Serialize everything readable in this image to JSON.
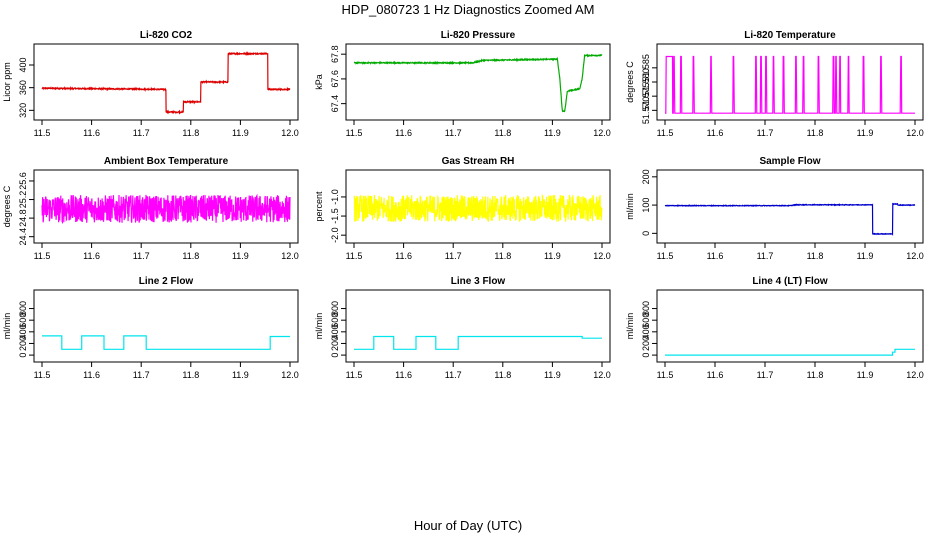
{
  "title": "HDP_080723  1 Hz Diagnostics Zoomed AM",
  "xlabel": "Hour of Day (UTC)",
  "chart_data": [
    {
      "type": "line",
      "title": "Li-820 CO2",
      "ylabel": "Licor ppm",
      "color": "#dd0000",
      "xlim": [
        11.5,
        12.0
      ],
      "ylim": [
        310,
        430
      ],
      "xticks": [
        "11.5",
        "11.6",
        "11.7",
        "11.8",
        "11.9",
        "12.0"
      ],
      "yticks": [
        "320",
        "360",
        "400"
      ],
      "noise": 1.0,
      "x": [
        11.5,
        11.75,
        11.75,
        11.785,
        11.785,
        11.82,
        11.82,
        11.875,
        11.875,
        11.955,
        11.955,
        12.0
      ],
      "y": [
        359,
        357,
        317,
        317,
        335,
        335,
        370,
        370,
        420,
        420,
        357,
        357
      ]
    },
    {
      "type": "line",
      "title": "Li-820 Pressure",
      "ylabel": "kPa",
      "color": "#00aa00",
      "xlim": [
        11.5,
        12.0
      ],
      "ylim": [
        67.3,
        67.85
      ],
      "xticks": [
        "11.5",
        "11.6",
        "11.7",
        "11.8",
        "11.9",
        "12.0"
      ],
      "yticks": [
        "67.4",
        "67.6",
        "67.8"
      ],
      "noise": 0.004,
      "x": [
        11.5,
        11.74,
        11.76,
        11.91,
        11.915,
        11.92,
        11.925,
        11.93,
        11.955,
        11.96,
        11.965,
        11.97,
        12.0
      ],
      "y": [
        67.73,
        67.73,
        67.75,
        67.76,
        67.6,
        67.34,
        67.34,
        67.5,
        67.52,
        67.6,
        67.79,
        67.79,
        67.79
      ]
    },
    {
      "type": "line",
      "title": "Li-820 Temperature",
      "ylabel": "degrees C",
      "color": "#ff00ff",
      "xlim": [
        11.5,
        12.0
      ],
      "ylim": [
        51.568,
        51.592
      ],
      "xticks": [
        "11.5",
        "11.6",
        "11.7",
        "11.8",
        "11.9",
        "12.0"
      ],
      "yticks": [
        "51.570",
        "51.575",
        "51.580",
        "51.585"
      ],
      "noise": 0,
      "x": [
        11.5,
        11.5015,
        11.5025,
        11.515,
        11.5155,
        11.5165,
        11.5175,
        11.5185,
        11.5195,
        11.52,
        11.53,
        11.5305,
        11.5315,
        11.5325,
        11.5335,
        11.5345,
        11.535,
        11.555,
        11.5555,
        11.5565,
        11.5575,
        11.5585,
        11.5595,
        11.56,
        11.59,
        11.5905,
        11.5915,
        11.5925,
        11.5935,
        11.5945,
        11.595,
        11.635,
        11.6355,
        11.6365,
        11.6375,
        11.6385,
        11.6395,
        11.64,
        11.68,
        11.6805,
        11.6815,
        11.6825,
        11.6835,
        11.6845,
        11.685,
        11.69,
        11.6905,
        11.6915,
        11.6925,
        11.6935,
        11.6945,
        11.695,
        11.7,
        11.7005,
        11.7015,
        11.7025,
        11.7035,
        11.7045,
        11.705,
        11.715,
        11.7155,
        11.7165,
        11.7175,
        11.7185,
        11.7195,
        11.72,
        11.735,
        11.7355,
        11.7365,
        11.7375,
        11.7385,
        11.7395,
        11.74,
        11.76,
        11.7605,
        11.7615,
        11.7625,
        11.7635,
        11.7645,
        11.765,
        11.775,
        11.7755,
        11.7765,
        11.7775,
        11.7785,
        11.7795,
        11.78,
        11.805,
        11.8055,
        11.8065,
        11.8075,
        11.8085,
        11.8095,
        11.81,
        11.835,
        11.8355,
        11.8365,
        11.8375,
        11.8385,
        11.8395,
        11.84,
        11.84,
        11.8405,
        11.8415,
        11.8425,
        11.8435,
        11.8445,
        11.845,
        11.848,
        11.8485,
        11.8495,
        11.8505,
        11.8515,
        11.8525,
        11.853,
        11.865,
        11.8655,
        11.8665,
        11.8675,
        11.8685,
        11.8695,
        11.87,
        11.895,
        11.8955,
        11.8965,
        11.8975,
        11.8985,
        11.8995,
        11.9,
        11.93,
        11.9305,
        11.9315,
        11.9325,
        11.9335,
        11.9345,
        11.935,
        11.97,
        11.9705,
        11.9715,
        11.9725,
        11.9735,
        11.9745,
        11.975,
        12.0
      ],
      "y": [
        51.569,
        51.569,
        51.589,
        51.589,
        51.569,
        51.569,
        51.589,
        51.589,
        51.569,
        51.569,
        51.569,
        51.569,
        51.589,
        51.589,
        51.569,
        51.569,
        51.569,
        51.569,
        51.569,
        51.589,
        51.589,
        51.569,
        51.569,
        51.569,
        51.569,
        51.569,
        51.589,
        51.589,
        51.569,
        51.569,
        51.569,
        51.569,
        51.569,
        51.589,
        51.589,
        51.569,
        51.569,
        51.569,
        51.569,
        51.569,
        51.589,
        51.589,
        51.569,
        51.569,
        51.569,
        51.569,
        51.569,
        51.589,
        51.589,
        51.569,
        51.569,
        51.569,
        51.569,
        51.569,
        51.589,
        51.589,
        51.569,
        51.569,
        51.569,
        51.569,
        51.569,
        51.589,
        51.589,
        51.569,
        51.569,
        51.569,
        51.569,
        51.569,
        51.589,
        51.589,
        51.569,
        51.569,
        51.569,
        51.569,
        51.569,
        51.589,
        51.589,
        51.569,
        51.569,
        51.569,
        51.569,
        51.569,
        51.589,
        51.589,
        51.569,
        51.569,
        51.569,
        51.569,
        51.569,
        51.589,
        51.589,
        51.569,
        51.569,
        51.569,
        51.569,
        51.569,
        51.589,
        51.589,
        51.569,
        51.569,
        51.569,
        51.569,
        51.569,
        51.589,
        51.589,
        51.569,
        51.569,
        51.569,
        51.569,
        51.569,
        51.589,
        51.589,
        51.569,
        51.569,
        51.569,
        51.569,
        51.569,
        51.589,
        51.589,
        51.569,
        51.569,
        51.569,
        51.569,
        51.569,
        51.589,
        51.589,
        51.569,
        51.569,
        51.569,
        51.569,
        51.569,
        51.589,
        51.589,
        51.569,
        51.569,
        51.569,
        51.569,
        51.569,
        51.589,
        51.589,
        51.569,
        51.569,
        51.569,
        51.569
      ]
    },
    {
      "type": "line",
      "title": "Ambient Box Temperature",
      "ylabel": "degrees C",
      "color": "#ff00ff",
      "xlim": [
        11.5,
        12.0
      ],
      "ylim": [
        24.35,
        25.75
      ],
      "xticks": [
        "11.5",
        "11.6",
        "11.7",
        "11.8",
        "11.9",
        "12.0"
      ],
      "yticks": [
        "24.4",
        "24.8",
        "25.2",
        "25.6"
      ],
      "noise": 0.3,
      "x": [
        11.5,
        12.0
      ],
      "y": [
        25.0,
        25.0
      ]
    },
    {
      "type": "line",
      "title": "Gas Stream RH",
      "ylabel": "percent",
      "color": "#ffff00",
      "xlim": [
        11.5,
        12.0
      ],
      "ylim": [
        -2.1,
        -0.4
      ],
      "xticks": [
        "11.5",
        "11.6",
        "11.7",
        "11.8",
        "11.9",
        "12.0"
      ],
      "yticks": [
        "-2.0",
        "-1.5",
        "-1.0"
      ],
      "noise": 0.35,
      "x": [
        11.5,
        12.0
      ],
      "y": [
        -1.3,
        -1.3
      ]
    },
    {
      "type": "line",
      "title": "Sample Flow",
      "ylabel": "ml/min",
      "color": "#0000cc",
      "xlim": [
        11.5,
        12.0
      ],
      "ylim": [
        -20,
        210
      ],
      "xticks": [
        "11.5",
        "11.6",
        "11.7",
        "11.8",
        "11.9",
        "12.0"
      ],
      "yticks": [
        "0",
        "100",
        "200"
      ],
      "noise": 1.0,
      "x": [
        11.5,
        11.75,
        11.76,
        11.915,
        11.915,
        11.955,
        11.955,
        11.965,
        11.965,
        12.0
      ],
      "y": [
        98,
        98,
        101,
        101,
        -2,
        -2,
        104,
        104,
        100,
        100
      ]
    },
    {
      "type": "line",
      "title": "Line 2 Flow",
      "ylabel": "ml/min",
      "color": "#00e5ee",
      "xlim": [
        11.5,
        12.0
      ],
      "ylim": [
        -50,
        1050
      ],
      "xticks": [
        "11.5",
        "11.6",
        "11.7",
        "11.8",
        "11.9",
        "12.0"
      ],
      "yticks": [
        "0",
        "200",
        "400",
        "600",
        "800"
      ],
      "noise": 0,
      "x": [
        11.5,
        11.54,
        11.54,
        11.58,
        11.58,
        11.625,
        11.625,
        11.665,
        11.665,
        11.71,
        11.71,
        11.96,
        11.96,
        12.0
      ],
      "y": [
        330,
        330,
        100,
        100,
        330,
        330,
        100,
        100,
        330,
        330,
        100,
        100,
        320,
        320
      ]
    },
    {
      "type": "line",
      "title": "Line 3 Flow",
      "ylabel": "ml/min",
      "color": "#00e5ee",
      "xlim": [
        11.5,
        12.0
      ],
      "ylim": [
        -50,
        1050
      ],
      "xticks": [
        "11.5",
        "11.6",
        "11.7",
        "11.8",
        "11.9",
        "12.0"
      ],
      "yticks": [
        "0",
        "200",
        "400",
        "600",
        "800"
      ],
      "noise": 0,
      "x": [
        11.5,
        11.54,
        11.54,
        11.58,
        11.58,
        11.625,
        11.625,
        11.665,
        11.665,
        11.71,
        11.71,
        11.96,
        11.96,
        12.0
      ],
      "y": [
        100,
        100,
        320,
        320,
        100,
        100,
        320,
        320,
        100,
        100,
        320,
        320,
        290,
        290
      ]
    },
    {
      "type": "line",
      "title": "Line 4 (LT) Flow",
      "ylabel": "ml/min",
      "color": "#00e5ee",
      "xlim": [
        11.5,
        12.0
      ],
      "ylim": [
        -50,
        1050
      ],
      "xticks": [
        "11.5",
        "11.6",
        "11.7",
        "11.8",
        "11.9",
        "12.0"
      ],
      "yticks": [
        "0",
        "200",
        "400",
        "600",
        "800"
      ],
      "noise": 0,
      "x": [
        11.5,
        11.955,
        11.955,
        11.96,
        11.96,
        12.0
      ],
      "y": [
        0,
        0,
        50,
        50,
        100,
        100
      ]
    }
  ]
}
